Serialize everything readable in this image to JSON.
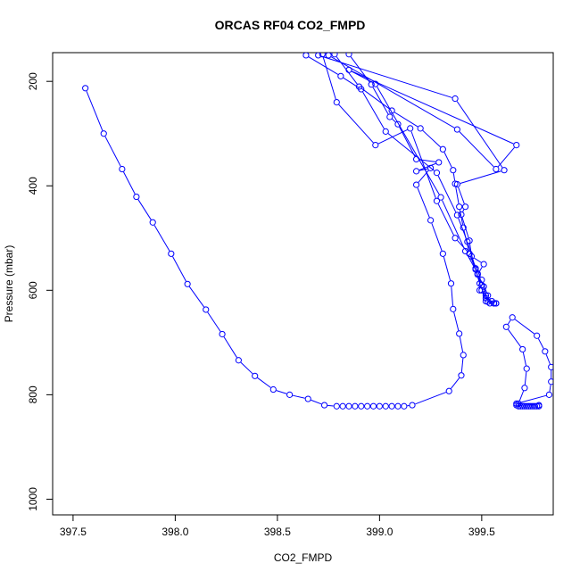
{
  "chart_data": {
    "type": "line",
    "title": "ORCAS RF04 CO2_FMPD",
    "xlabel": "CO2_FMPD",
    "ylabel": "Pressure (mbar)",
    "xlim": [
      397.4,
      399.85
    ],
    "ylim": [
      1030,
      145
    ],
    "y_reversed": true,
    "x_ticks": [
      397.5,
      398.0,
      398.5,
      399.0,
      399.5
    ],
    "x_tick_labels": [
      "397.5",
      "398.0",
      "398.5",
      "399.0",
      "399.5"
    ],
    "y_ticks": [
      200,
      400,
      600,
      800,
      1000
    ],
    "y_tick_labels": [
      "200",
      "400",
      "600",
      "800",
      "1000"
    ],
    "grid": false,
    "legend": "none",
    "series_color": "#0000ff",
    "marker": "open-circle",
    "series": [
      {
        "values": [
          [
            397.56,
            213
          ],
          [
            397.65,
            300
          ],
          [
            397.74,
            368
          ],
          [
            397.81,
            421
          ],
          [
            397.89,
            470
          ],
          [
            397.98,
            530
          ],
          [
            398.06,
            588
          ],
          [
            398.15,
            637
          ],
          [
            398.23,
            684
          ],
          [
            398.31,
            734
          ],
          [
            398.39,
            764
          ],
          [
            398.48,
            790
          ],
          [
            398.56,
            800
          ],
          [
            398.65,
            808
          ],
          [
            398.73,
            820
          ],
          [
            398.79,
            822
          ],
          [
            398.82,
            822
          ],
          [
            398.85,
            822
          ],
          [
            398.88,
            822
          ],
          [
            398.91,
            822
          ],
          [
            398.94,
            822
          ],
          [
            398.97,
            822
          ],
          [
            399.0,
            822
          ],
          [
            399.03,
            822
          ],
          [
            399.06,
            822
          ],
          [
            399.09,
            822
          ],
          [
            399.12,
            822
          ],
          [
            399.16,
            820
          ],
          [
            399.34,
            793
          ],
          [
            399.4,
            763
          ],
          [
            399.41,
            724
          ],
          [
            399.39,
            683
          ],
          [
            399.36,
            636
          ],
          [
            399.35,
            587
          ],
          [
            399.31,
            530
          ],
          [
            399.25,
            466
          ],
          [
            399.18,
            398
          ],
          [
            399.25,
            366
          ],
          [
            399.18,
            372
          ],
          [
            399.29,
            355
          ],
          [
            399.18,
            349
          ],
          [
            399.09,
            282
          ],
          [
            399.05,
            268
          ],
          [
            398.96,
            206
          ],
          [
            398.85,
            148
          ]
        ]
      },
      {
        "values": [
          [
            398.72,
            148
          ],
          [
            398.79,
            240
          ],
          [
            398.98,
            322
          ],
          [
            399.15,
            290
          ],
          [
            399.28,
            429
          ],
          [
            399.37,
            500
          ],
          [
            399.44,
            530
          ],
          [
            399.5,
            580
          ],
          [
            399.53,
            610
          ],
          [
            399.55,
            621
          ],
          [
            399.57,
            625
          ],
          [
            399.56,
            625
          ],
          [
            399.57,
            625
          ],
          [
            399.52,
            621
          ],
          [
            399.5,
            600
          ],
          [
            399.47,
            560
          ],
          [
            399.44,
            530
          ],
          [
            399.41,
            480
          ],
          [
            399.39,
            440
          ],
          [
            399.37,
            396
          ],
          [
            399.36,
            370
          ],
          [
            399.31,
            330
          ],
          [
            399.2,
            290
          ],
          [
            399.06,
            256
          ],
          [
            398.9,
            210
          ],
          [
            398.78,
            148
          ]
        ]
      },
      {
        "values": [
          [
            399.67,
            820
          ],
          [
            399.68,
            822
          ],
          [
            399.69,
            822
          ],
          [
            399.7,
            822
          ],
          [
            399.71,
            822
          ],
          [
            399.72,
            822
          ],
          [
            399.73,
            822
          ],
          [
            399.74,
            822
          ],
          [
            399.75,
            822
          ],
          [
            399.76,
            822
          ],
          [
            399.77,
            822
          ],
          [
            399.78,
            822
          ],
          [
            399.78,
            820
          ],
          [
            399.68,
            817
          ],
          [
            399.71,
            787
          ],
          [
            399.72,
            750
          ],
          [
            399.7,
            713
          ],
          [
            399.62,
            670
          ],
          [
            399.65,
            652
          ],
          [
            399.77,
            687
          ],
          [
            399.81,
            717
          ],
          [
            399.84,
            747
          ],
          [
            399.84,
            775
          ],
          [
            399.83,
            800
          ],
          [
            399.67,
            817
          ]
        ]
      },
      {
        "values": [
          [
            399.52,
            610
          ],
          [
            399.49,
            600
          ],
          [
            399.5,
            590
          ],
          [
            399.48,
            570
          ],
          [
            399.51,
            550
          ],
          [
            399.45,
            535
          ],
          [
            399.44,
            505
          ],
          [
            399.4,
            455
          ],
          [
            399.42,
            440
          ],
          [
            399.38,
            397
          ],
          [
            399.61,
            370
          ],
          [
            399.37,
            233
          ],
          [
            398.7,
            150
          ]
        ]
      },
      {
        "values": [
          [
            398.64,
            150
          ],
          [
            398.81,
            190
          ],
          [
            398.91,
            215
          ],
          [
            399.03,
            296
          ],
          [
            399.28,
            375
          ],
          [
            399.38,
            456
          ],
          [
            399.43,
            507
          ],
          [
            399.47,
            558
          ],
          [
            399.49,
            587
          ],
          [
            399.52,
            615
          ],
          [
            399.54,
            625
          ],
          [
            399.56,
            625
          ]
        ]
      },
      {
        "values": [
          [
            398.75,
            150
          ],
          [
            399.38,
            292
          ],
          [
            399.57,
            368
          ],
          [
            399.67,
            322
          ],
          [
            398.85,
            178
          ],
          [
            398.98,
            205
          ],
          [
            399.3,
            422
          ],
          [
            399.42,
            525
          ],
          [
            399.48,
            568
          ],
          [
            399.51,
            593
          ],
          [
            399.53,
            622
          ]
        ]
      }
    ]
  }
}
